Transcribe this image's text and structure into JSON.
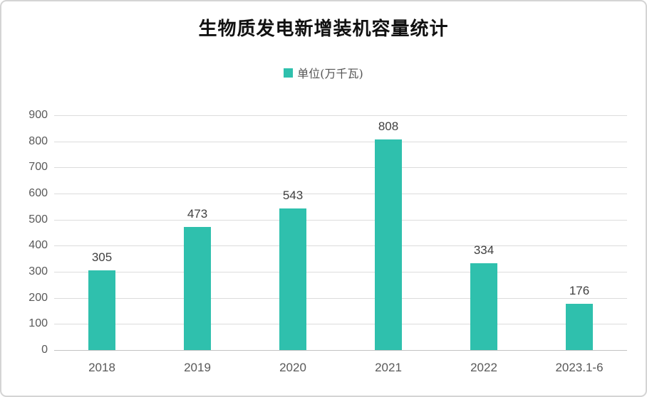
{
  "title": "生物质发电新增装机容量统计",
  "legend": {
    "label": "单位(万千瓦)",
    "marker_color": "#2FC0AD"
  },
  "chart_data": {
    "type": "bar",
    "title": "生物质发电新增装机容量统计",
    "categories": [
      "2018",
      "2019",
      "2020",
      "2021",
      "2022",
      "2023.1-6"
    ],
    "values": [
      305,
      473,
      543,
      808,
      334,
      176
    ],
    "data_labels": [
      "305",
      "473",
      "543",
      "808",
      "334",
      "176"
    ],
    "legend_entries": [
      "单位(万千瓦)"
    ],
    "legend_position": "top",
    "xlabel": "",
    "ylabel": "",
    "ylim": [
      0,
      900
    ],
    "ytick_step": 100,
    "ytick_labels": [
      "0",
      "100",
      "200",
      "300",
      "400",
      "500",
      "600",
      "700",
      "800",
      "900"
    ],
    "grid": true,
    "colors": {
      "bar": "#2FC0AD",
      "gridline": "#dcdcdc",
      "baseline": "#c3c3c3",
      "axis_text": "#595959",
      "value_text": "#404040",
      "title_text": "#111111",
      "card_border": "#d4d4d4"
    }
  }
}
